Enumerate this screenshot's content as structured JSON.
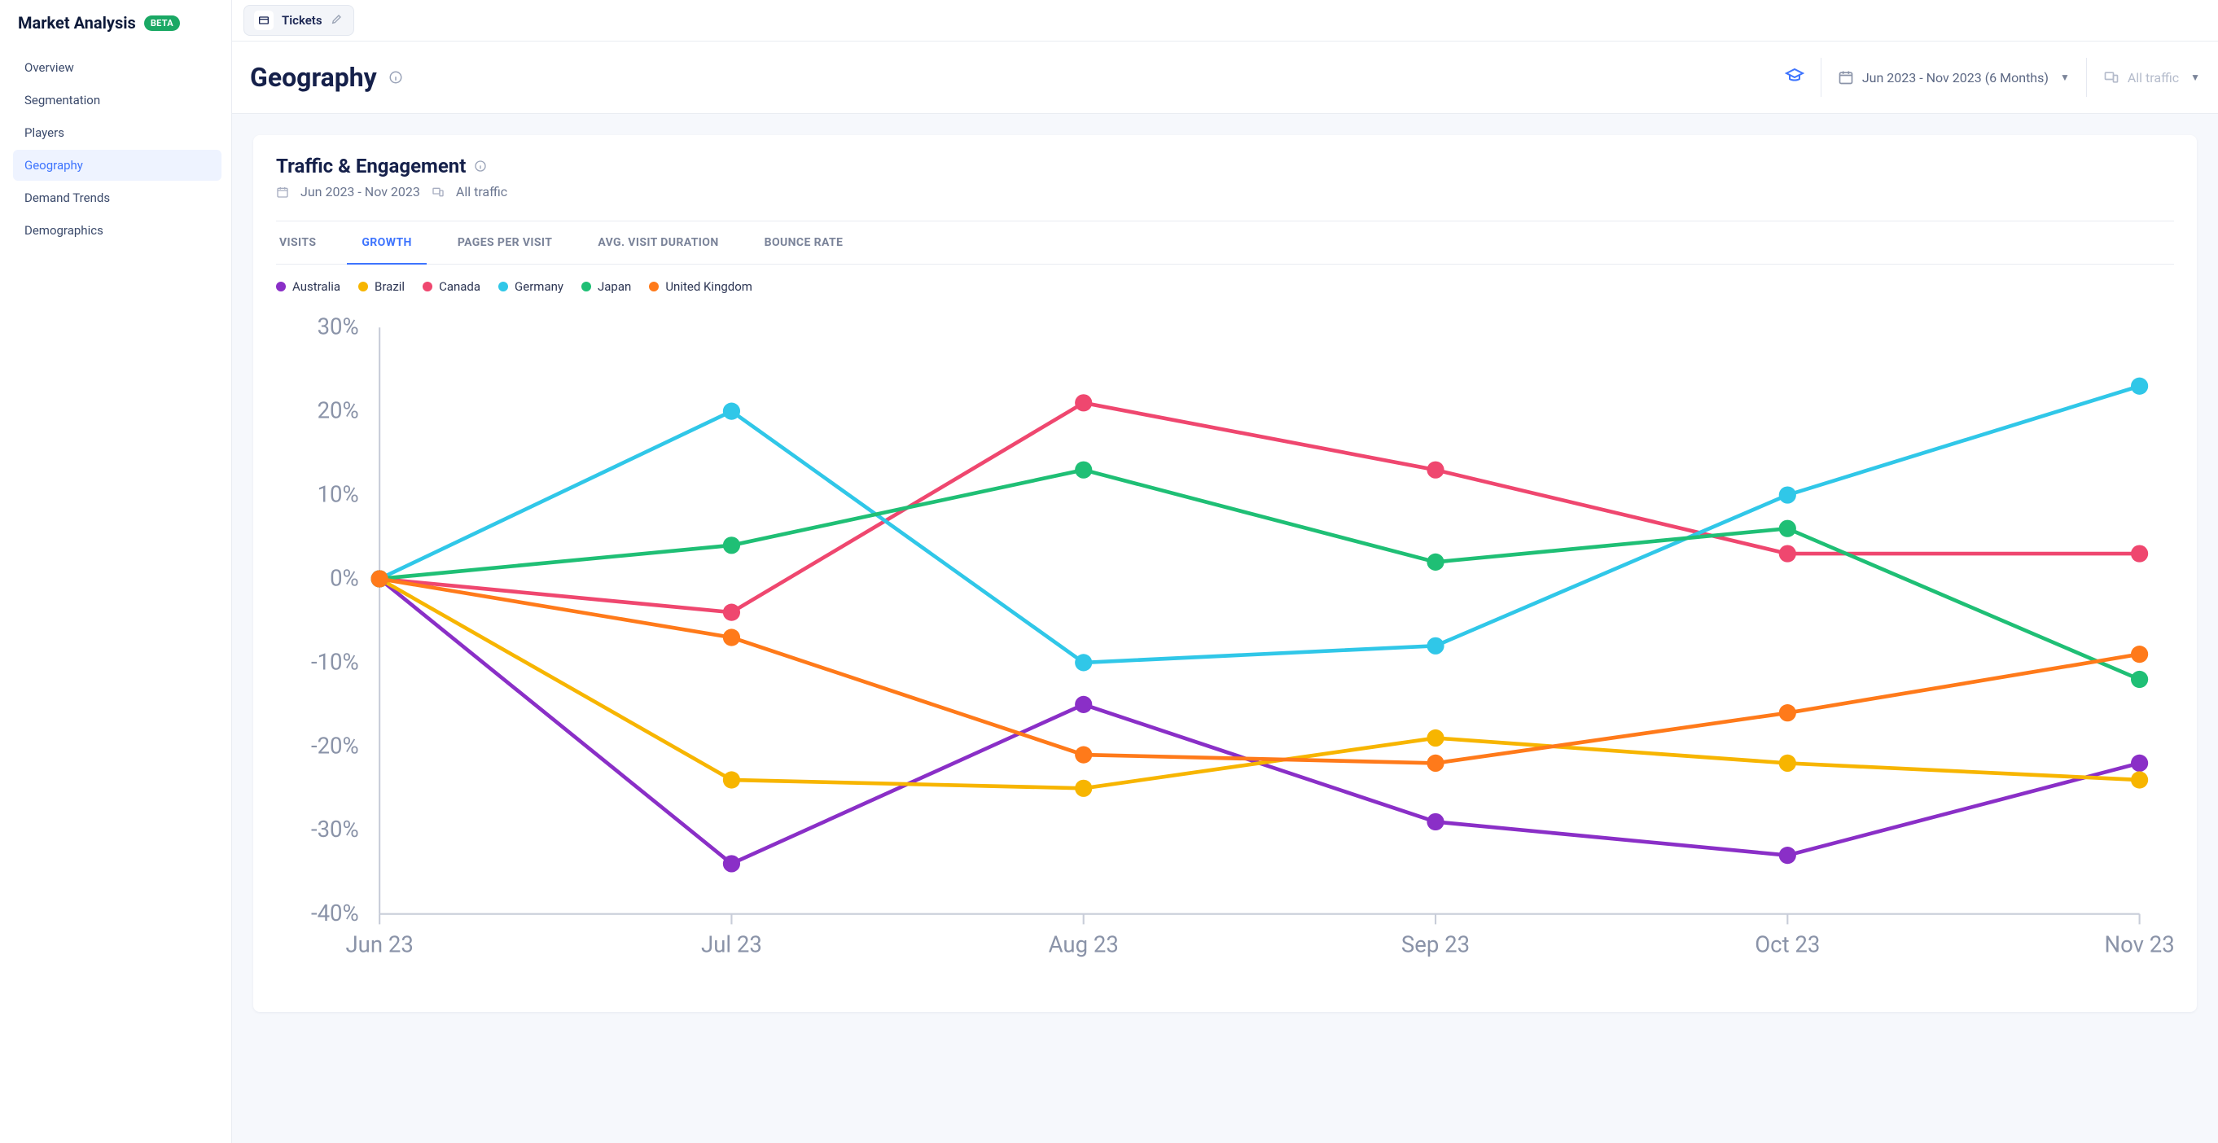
{
  "sidebar": {
    "title": "Market Analysis",
    "badge": "BETA",
    "items": [
      {
        "label": "Overview",
        "active": false
      },
      {
        "label": "Segmentation",
        "active": false
      },
      {
        "label": "Players",
        "active": false
      },
      {
        "label": "Geography",
        "active": true
      },
      {
        "label": "Demand Trends",
        "active": false
      },
      {
        "label": "Demographics",
        "active": false
      }
    ]
  },
  "topbar": {
    "ticket_label": "Tickets"
  },
  "header": {
    "title": "Geography",
    "date_range": "Jun 2023 - Nov 2023 (6 Months)",
    "traffic_filter": "All traffic"
  },
  "card": {
    "title": "Traffic & Engagement",
    "date_text": "Jun 2023 - Nov 2023",
    "traffic_text": "All traffic",
    "tabs": [
      "VISITS",
      "GROWTH",
      "PAGES PER VISIT",
      "AVG. VISIT DURATION",
      "BOUNCE RATE"
    ],
    "active_tab_index": 1
  },
  "chart": {
    "type": "line",
    "title_fontsize": 24,
    "background_color": "#ffffff",
    "grid_color": "#edf0f6",
    "axis_color": "#c8cdd9",
    "axis_label_color": "#8a93a8",
    "axis_label_fontsize": 13,
    "x_labels": [
      "Jun 23",
      "Jul 23",
      "Aug 23",
      "Sep 23",
      "Oct 23",
      "Nov 23"
    ],
    "y_ticks": [
      -40,
      -30,
      -20,
      -10,
      0,
      10,
      20,
      30
    ],
    "y_tick_labels": [
      "-40%",
      "-30%",
      "-20%",
      "-10%",
      "0%",
      "10%",
      "20%",
      "30%"
    ],
    "ylim": [
      -40,
      30
    ],
    "marker_radius": 5,
    "line_width": 2.2,
    "series": [
      {
        "name": "Australia",
        "color": "#8a2fc7",
        "values": [
          0,
          -34,
          -15,
          -29,
          -33,
          -22
        ]
      },
      {
        "name": "Brazil",
        "color": "#f7b500",
        "values": [
          0,
          -24,
          -25,
          -19,
          -22,
          -24
        ]
      },
      {
        "name": "Canada",
        "color": "#ef476f",
        "values": [
          0,
          -4,
          21,
          13,
          3,
          3
        ]
      },
      {
        "name": "Germany",
        "color": "#30c7e8",
        "values": [
          0,
          20,
          -10,
          -8,
          10,
          23
        ]
      },
      {
        "name": "Japan",
        "color": "#1fbf75",
        "values": [
          0,
          4,
          13,
          2,
          6,
          -12
        ]
      },
      {
        "name": "United Kingdom",
        "color": "#ff7a1a",
        "values": [
          0,
          -7,
          -21,
          -22,
          -16,
          -9
        ]
      }
    ]
  }
}
